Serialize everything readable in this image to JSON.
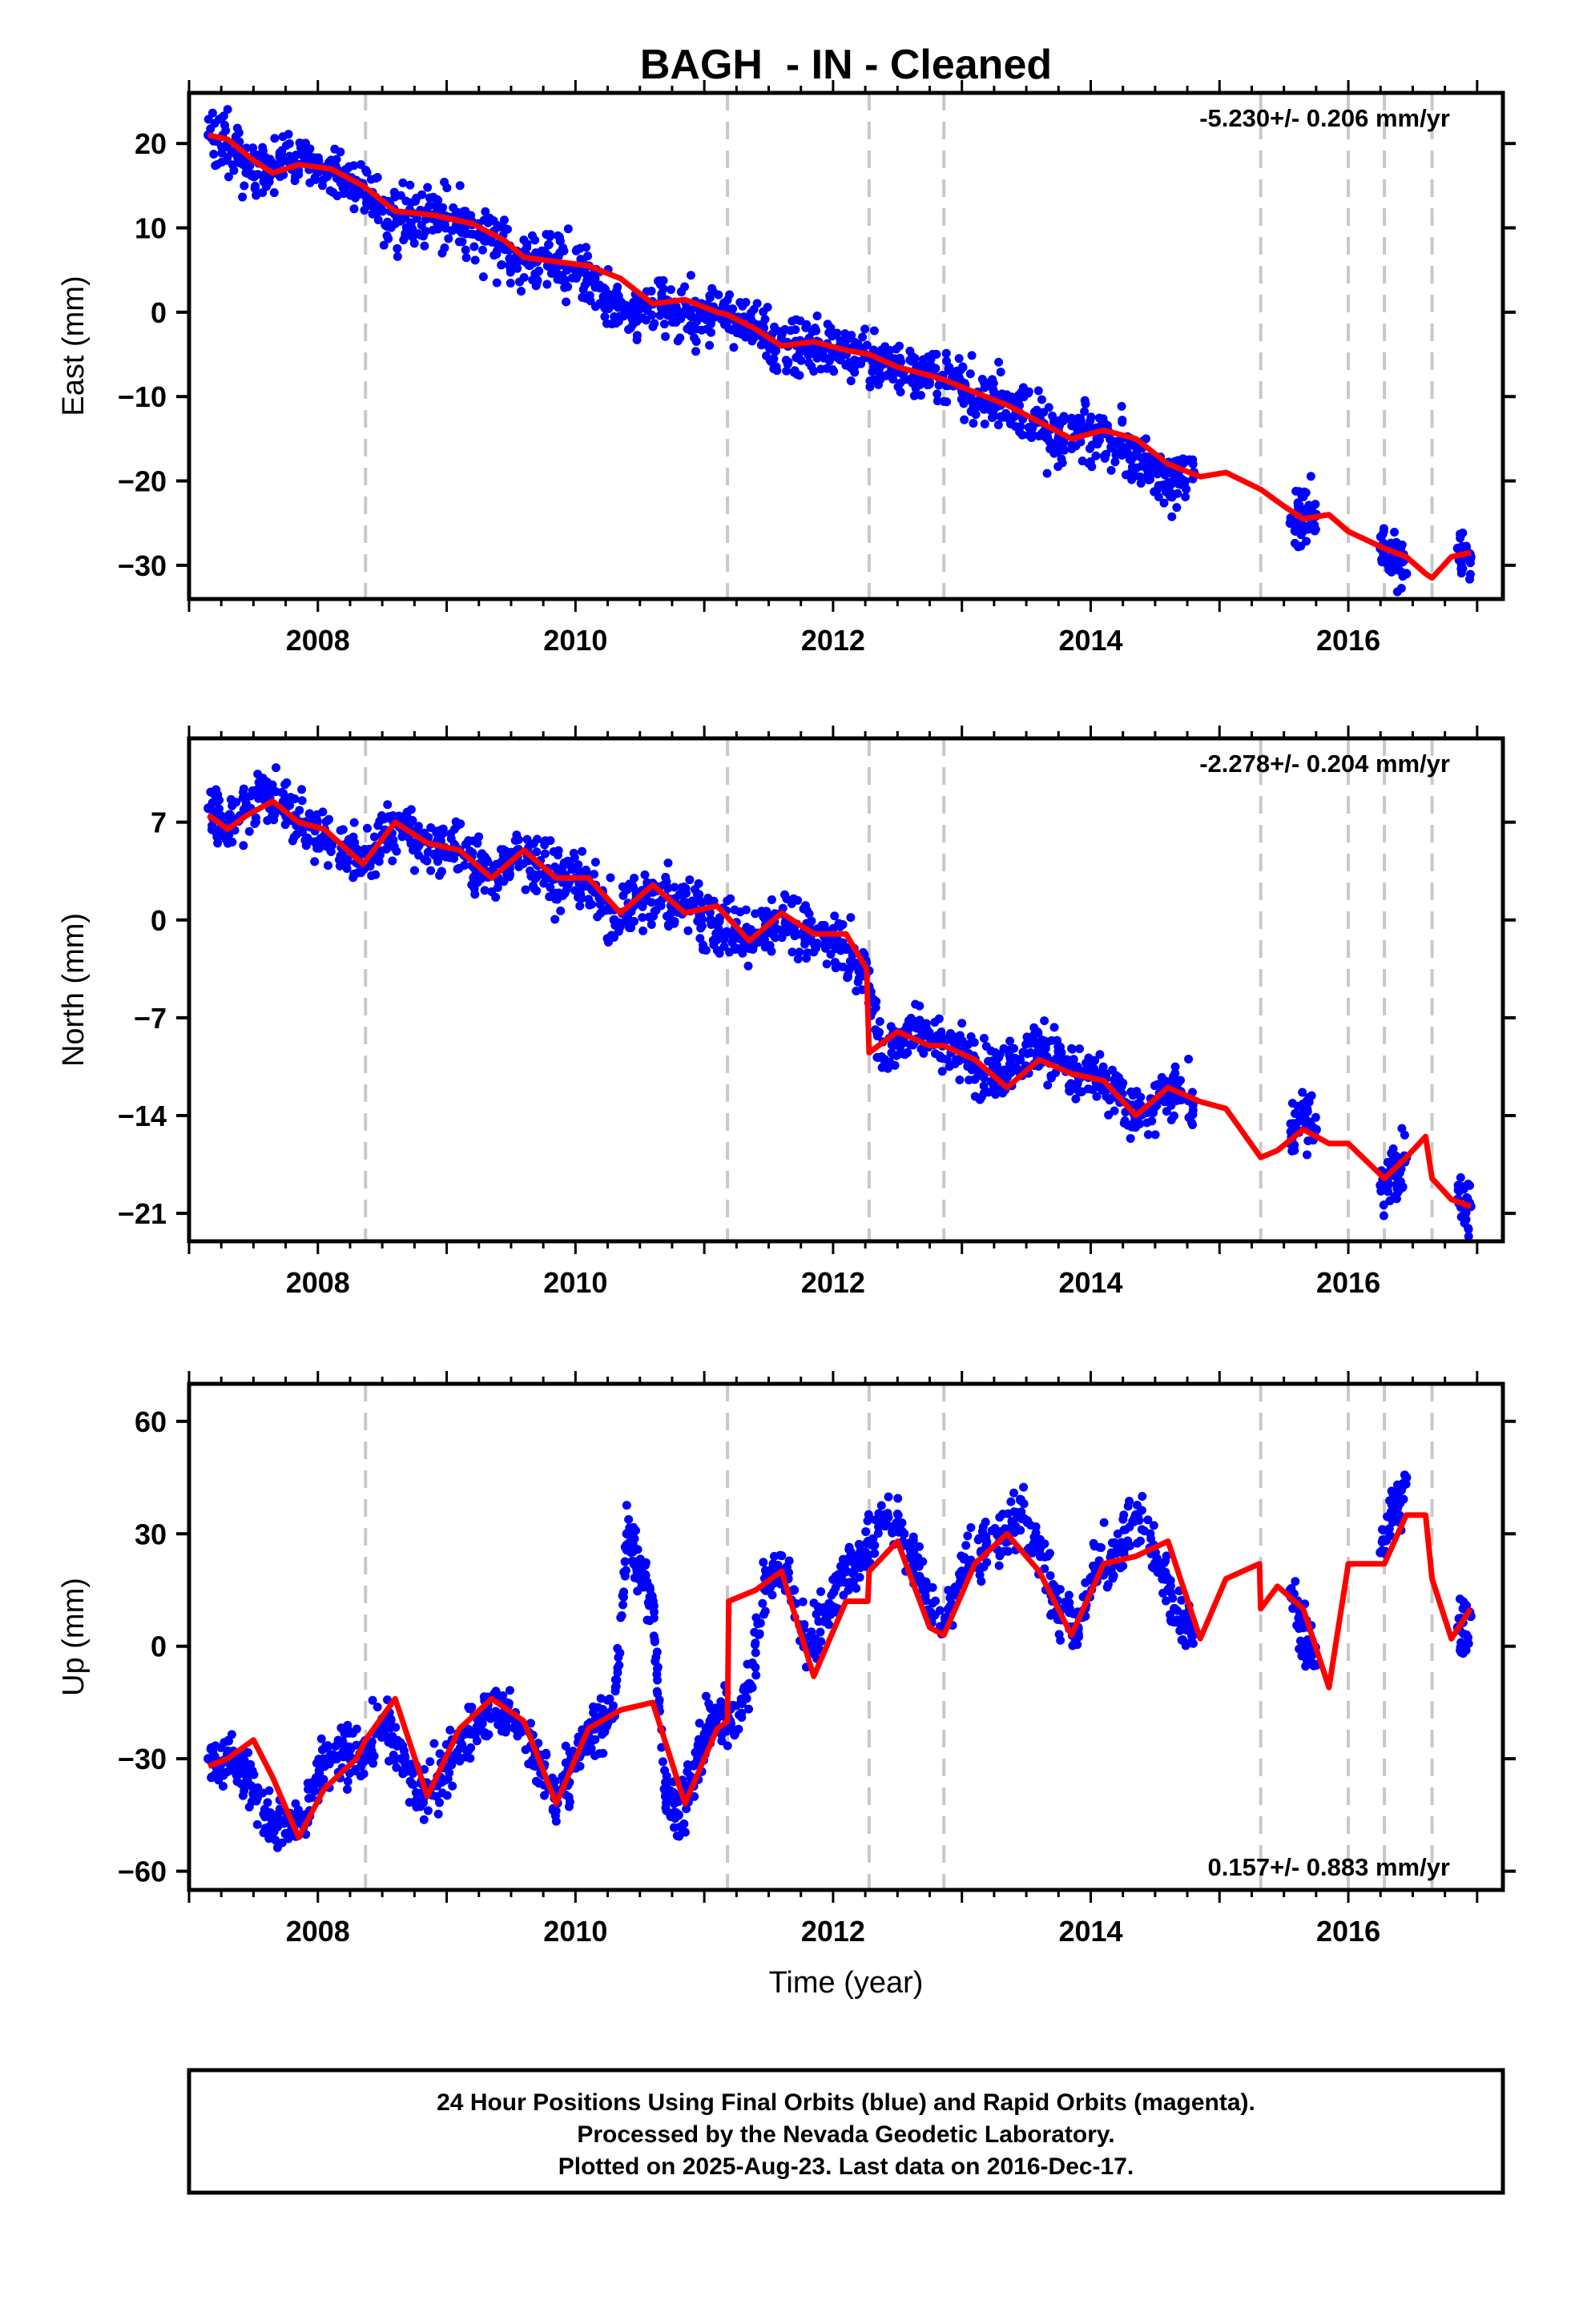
{
  "chart_data": {
    "type": "scatter",
    "title": "BAGH  - IN - Cleaned",
    "xlabel": "Time (year)",
    "xlim": [
      2007.0,
      2017.2
    ],
    "x_ticks": [
      2008,
      2010,
      2012,
      2014,
      2016
    ],
    "x_tick_labels": [
      "2008",
      "2010",
      "2012",
      "2014",
      "2016"
    ],
    "grid": false,
    "discontinuities": [
      2008.37,
      2011.18,
      2012.28,
      2012.86,
      2015.32,
      2016.0,
      2016.28,
      2016.65
    ],
    "colors": {
      "data": "#0000ff",
      "model": "#ff0000",
      "breaks": "#c8c8c8",
      "frame": "#000000"
    },
    "panels": [
      {
        "name": "East",
        "ylabel": "East (mm)",
        "ylim": [
          -34,
          26
        ],
        "y_ticks": [
          -30,
          -20,
          -10,
          0,
          10,
          20
        ],
        "y_tick_labels": [
          "−30",
          "−20",
          "−10",
          "0",
          "10",
          "20"
        ],
        "rate_text": "-5.230+/- 0.206 mm/yr",
        "rate_position": "top-right",
        "series": [
          {
            "name": "24 Hour Positions",
            "style": "points",
            "x": [
              2007.15,
              2007.3,
              2007.45,
              2007.6,
              2007.75,
              2007.9,
              2008.05,
              2008.2,
              2008.35,
              2008.5,
              2008.65,
              2008.8,
              2008.95,
              2009.1,
              2009.25,
              2009.4,
              2009.55,
              2009.7,
              2009.85,
              2010.0,
              2010.15,
              2010.3,
              2010.45,
              2010.6,
              2010.75,
              2010.9,
              2011.05,
              2011.2,
              2011.35,
              2011.5,
              2011.65,
              2011.8,
              2011.95,
              2012.1,
              2012.25,
              2012.4,
              2012.55,
              2012.7,
              2012.85,
              2013.0,
              2013.15,
              2013.3,
              2013.45,
              2013.6,
              2013.75,
              2013.9,
              2014.05,
              2014.2,
              2014.35,
              2014.5,
              2014.65,
              2014.8,
              2015.55,
              2015.65,
              2015.75,
              2016.25,
              2016.35,
              2016.45,
              2016.85,
              2016.95
            ],
            "y": [
              21,
              20,
              17,
              16.5,
              18,
              18,
              17,
              16,
              15,
              12,
              11,
              12,
              11.5,
              10,
              9,
              8,
              6,
              6,
              6.5,
              5,
              4,
              1,
              0,
              1,
              0.5,
              -0.5,
              0,
              0,
              -2,
              -3,
              -4,
              -3.5,
              -4,
              -5,
              -5,
              -6,
              -7,
              -8,
              -7.5,
              -9,
              -10,
              -11,
              -12,
              -13,
              -15,
              -14,
              -15,
              -15.5,
              -17,
              -19,
              -20,
              -19,
              -25,
              -24,
              -24,
              -28,
              -29,
              -31,
              -28,
              -29
            ]
          },
          {
            "name": "Model fit",
            "style": "line",
            "x": [
              2007.15,
              2007.3,
              2007.5,
              2007.65,
              2007.85,
              2008.1,
              2008.35,
              2008.6,
              2008.9,
              2009.2,
              2009.45,
              2009.6,
              2009.85,
              2010.1,
              2010.35,
              2010.6,
              2010.85,
              2011.1,
              2011.18,
              2011.4,
              2011.6,
              2011.85,
              2012.1,
              2012.28,
              2012.5,
              2012.75,
              2012.86,
              2013.1,
              2013.35,
              2013.6,
              2013.85,
              2014.1,
              2014.35,
              2014.6,
              2014.85,
              2015.05,
              2015.32,
              2015.5,
              2015.65,
              2015.85,
              2016.0,
              2016.28,
              2016.45,
              2016.6,
              2016.65,
              2016.8,
              2016.95
            ],
            "y": [
              21,
              20.5,
              18,
              16.5,
              17.5,
              17,
              15,
              12,
              11.5,
              10.5,
              8.5,
              6.5,
              6,
              5.5,
              4,
              1,
              1.5,
              0,
              -0.3,
              -2,
              -4,
              -3.5,
              -4.5,
              -5,
              -6.5,
              -7.5,
              -8,
              -9.5,
              -11,
              -13,
              -15,
              -14,
              -15,
              -18,
              -19.5,
              -19,
              -21,
              -23,
              -24.5,
              -24,
              -26,
              -28,
              -29,
              -31,
              -31.5,
              -29,
              -28.5
            ]
          }
        ]
      },
      {
        "name": "North",
        "ylabel": "North (mm)",
        "ylim": [
          -23,
          13
        ],
        "y_ticks": [
          -21,
          -14,
          -7,
          0,
          7
        ],
        "y_tick_labels": [
          "−21",
          "−14",
          "−7",
          "0",
          "7"
        ],
        "rate_text": "-2.278+/- 0.204 mm/yr",
        "rate_position": "top-right",
        "series": [
          {
            "name": "24 Hour Positions",
            "style": "points",
            "x": [
              2007.15,
              2007.3,
              2007.45,
              2007.6,
              2007.75,
              2007.9,
              2008.05,
              2008.2,
              2008.35,
              2008.5,
              2008.65,
              2008.8,
              2008.95,
              2009.1,
              2009.25,
              2009.4,
              2009.55,
              2009.7,
              2009.85,
              2010.0,
              2010.15,
              2010.3,
              2010.45,
              2010.6,
              2010.75,
              2010.9,
              2011.05,
              2011.2,
              2011.35,
              2011.5,
              2011.65,
              2011.8,
              2011.95,
              2012.1,
              2012.25,
              2012.4,
              2012.55,
              2012.7,
              2012.85,
              2013.0,
              2013.15,
              2013.3,
              2013.45,
              2013.6,
              2013.75,
              2013.9,
              2014.05,
              2014.2,
              2014.35,
              2014.5,
              2014.65,
              2014.8,
              2015.55,
              2015.65,
              2015.75,
              2016.25,
              2016.35,
              2016.45,
              2016.85,
              2016.95
            ],
            "y": [
              8,
              7,
              8,
              9,
              8,
              7,
              6,
              5,
              4,
              6,
              7,
              6,
              5,
              5,
              4,
              3,
              5,
              4,
              3,
              3,
              2,
              0,
              1,
              2,
              1,
              1,
              0,
              -1,
              -1.5,
              0,
              0,
              -1,
              -1,
              -2,
              -4,
              -10,
              -8,
              -8,
              -9,
              -9,
              -11,
              -11,
              -10,
              -9,
              -10,
              -11,
              -11,
              -12,
              -14,
              -13,
              -12,
              -13,
              -16,
              -14,
              -15,
              -19,
              -18,
              -17,
              -20,
              -20.5
            ]
          },
          {
            "name": "Model fit",
            "style": "line",
            "x": [
              2007.15,
              2007.3,
              2007.45,
              2007.65,
              2007.85,
              2008.05,
              2008.35,
              2008.6,
              2008.85,
              2009.1,
              2009.35,
              2009.6,
              2009.85,
              2010.1,
              2010.35,
              2010.6,
              2010.85,
              2011.1,
              2011.35,
              2011.6,
              2011.85,
              2012.1,
              2012.26,
              2012.28,
              2012.5,
              2012.75,
              2012.86,
              2013.1,
              2013.35,
              2013.6,
              2013.85,
              2014.1,
              2014.35,
              2014.6,
              2014.85,
              2015.05,
              2015.32,
              2015.45,
              2015.65,
              2015.85,
              2016.0,
              2016.28,
              2016.45,
              2016.6,
              2016.65,
              2016.8,
              2016.95
            ],
            "y": [
              7.5,
              6.5,
              7.5,
              8.5,
              7,
              6.5,
              4,
              7,
              5.5,
              5,
              3,
              5,
              3,
              3,
              0.5,
              2.5,
              0.5,
              1,
              -1.5,
              0.5,
              -1,
              -1,
              -3.5,
              -9.5,
              -8,
              -9,
              -9,
              -10,
              -12,
              -10,
              -11,
              -11.5,
              -14,
              -12,
              -13,
              -13.5,
              -17,
              -16.5,
              -15,
              -16,
              -16,
              -18.5,
              -17,
              -15.5,
              -18.5,
              -20,
              -20.5
            ]
          }
        ]
      },
      {
        "name": "Up",
        "ylabel": "Up (mm)",
        "ylim": [
          -65,
          70
        ],
        "y_ticks": [
          -60,
          -30,
          0,
          30,
          60
        ],
        "y_tick_labels": [
          "−60",
          "−30",
          "0",
          "30",
          "60"
        ],
        "rate_text": "0.157+/- 0.883 mm/yr",
        "rate_position": "bottom-right",
        "series": [
          {
            "name": "24 Hour Positions",
            "style": "points",
            "x": [
              2007.15,
              2007.3,
              2007.45,
              2007.6,
              2007.75,
              2007.9,
              2008.05,
              2008.2,
              2008.35,
              2008.5,
              2008.65,
              2008.8,
              2008.95,
              2009.1,
              2009.25,
              2009.4,
              2009.55,
              2009.7,
              2009.85,
              2010.0,
              2010.15,
              2010.3,
              2010.4,
              2010.5,
              2010.6,
              2010.7,
              2010.8,
              2010.95,
              2011.05,
              2011.2,
              2011.35,
              2011.5,
              2011.65,
              2011.8,
              2011.95,
              2012.1,
              2012.25,
              2012.4,
              2012.55,
              2012.7,
              2012.85,
              2013.0,
              2013.15,
              2013.3,
              2013.45,
              2013.6,
              2013.75,
              2013.9,
              2014.05,
              2014.2,
              2014.35,
              2014.5,
              2014.65,
              2014.8,
              2015.55,
              2015.65,
              2015.75,
              2016.25,
              2016.35,
              2016.45,
              2016.85,
              2016.95
            ],
            "y": [
              -30,
              -28,
              -35,
              -45,
              -50,
              -45,
              -32,
              -28,
              -30,
              -20,
              -30,
              -40,
              -35,
              -25,
              -20,
              -18,
              -20,
              -30,
              -40,
              -30,
              -22,
              -18,
              30,
              20,
              12,
              -40,
              -45,
              -30,
              -20,
              -20,
              -10,
              20,
              18,
              0,
              10,
              20,
              25,
              35,
              30,
              15,
              5,
              20,
              25,
              30,
              35,
              25,
              10,
              5,
              20,
              25,
              35,
              25,
              10,
              5,
              15,
              5,
              -5,
              25,
              35,
              45,
              5,
              8
            ]
          },
          {
            "name": "Model fit",
            "style": "line",
            "x": [
              2007.15,
              2007.3,
              2007.5,
              2007.65,
              2007.85,
              2008.05,
              2008.3,
              2008.37,
              2008.6,
              2008.85,
              2009.1,
              2009.35,
              2009.6,
              2009.85,
              2010.1,
              2010.35,
              2010.6,
              2010.85,
              2011.1,
              2011.18,
              2011.19,
              2011.4,
              2011.6,
              2011.85,
              2012.1,
              2012.27,
              2012.28,
              2012.5,
              2012.75,
              2012.86,
              2013.1,
              2013.35,
              2013.6,
              2013.85,
              2014.1,
              2014.35,
              2014.6,
              2014.85,
              2015.05,
              2015.31,
              2015.32,
              2015.45,
              2015.65,
              2015.85,
              2016.0,
              2016.28,
              2016.45,
              2016.6,
              2016.65,
              2016.8,
              2016.95
            ],
            "y": [
              -32,
              -30,
              -25,
              -35,
              -51,
              -38,
              -30,
              -25,
              -14,
              -40,
              -22,
              -14,
              -20,
              -42,
              -22,
              -17,
              -15,
              -42,
              -22,
              -20,
              12,
              15,
              20,
              -8,
              12,
              12,
              20,
              28,
              5,
              3,
              22,
              30,
              20,
              3,
              22,
              24,
              28,
              2,
              18,
              22,
              10,
              16,
              10,
              -11,
              22,
              22,
              35,
              35,
              18,
              2,
              10
            ]
          }
        ]
      }
    ]
  },
  "footer": {
    "line1": "24 Hour Positions Using Final Orbits (blue) and Rapid Orbits (magenta).",
    "line2": "Processed by the Nevada Geodetic Laboratory.",
    "line3": "Plotted on 2025-Aug-23. Last data on 2016-Dec-17."
  }
}
